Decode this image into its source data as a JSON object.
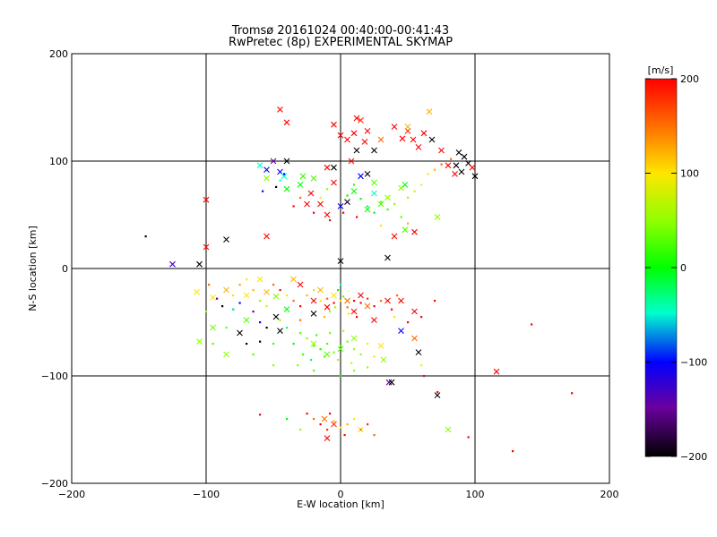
{
  "title": "Tromsø 20161024 00:40:00-00:41:43",
  "subtitle": "RwPretec (8p) EXPERIMENTAL SKYMAP",
  "chart_data": {
    "type": "scatter",
    "xlabel": "E-W location [km]",
    "ylabel": "N-S location [km]",
    "xlim": [
      -200,
      200
    ],
    "ylim": [
      -200,
      200
    ],
    "xticks": [
      -200,
      -100,
      0,
      100,
      200
    ],
    "yticks": [
      -200,
      -100,
      0,
      100,
      200
    ],
    "grid": true,
    "colorbar": {
      "label": "[m/s]",
      "range": [
        -200,
        200
      ],
      "ticks": [
        200,
        100,
        0,
        -100,
        -200
      ],
      "colormap": "rainbow: black(-200) → purple → blue(-100) → cyan → green(0) → yellow(100) → orange → red(200)"
    },
    "markers": {
      "cross": "x",
      "small": "."
    },
    "points": [
      [
        -45,
        148,
        200,
        "x"
      ],
      [
        -40,
        136,
        200,
        "x"
      ],
      [
        -5,
        134,
        200,
        "x"
      ],
      [
        12,
        140,
        200,
        "x"
      ],
      [
        15,
        138,
        180,
        "x"
      ],
      [
        20,
        128,
        200,
        "x"
      ],
      [
        10,
        126,
        200,
        "x"
      ],
      [
        0,
        124,
        200,
        "x"
      ],
      [
        5,
        120,
        200,
        "x"
      ],
      [
        18,
        118,
        200,
        "x"
      ],
      [
        50,
        128,
        180,
        "x"
      ],
      [
        46,
        121,
        200,
        "x"
      ],
      [
        54,
        120,
        200,
        "x"
      ],
      [
        58,
        113,
        200,
        "x"
      ],
      [
        66,
        146,
        120,
        "x"
      ],
      [
        50,
        132,
        120,
        "x"
      ],
      [
        68,
        120,
        -200,
        "x"
      ],
      [
        62,
        126,
        200,
        "x"
      ],
      [
        75,
        110,
        200,
        "x"
      ],
      [
        88,
        108,
        -200,
        "x"
      ],
      [
        92,
        104,
        -200,
        "x"
      ],
      [
        95,
        98,
        -200,
        "x"
      ],
      [
        98,
        94,
        200,
        "x"
      ],
      [
        100,
        86,
        -200,
        "x"
      ],
      [
        86,
        96,
        -200,
        "x"
      ],
      [
        90,
        90,
        -200,
        "x"
      ],
      [
        85,
        88,
        200,
        "x"
      ],
      [
        80,
        96,
        200,
        "x"
      ],
      [
        30,
        120,
        150,
        "x"
      ],
      [
        40,
        132,
        200,
        "x"
      ],
      [
        25,
        110,
        -200,
        "x"
      ],
      [
        12,
        110,
        -200,
        "x"
      ],
      [
        8,
        100,
        200,
        "x"
      ],
      [
        -50,
        100,
        -150,
        "x"
      ],
      [
        -55,
        92,
        -100,
        "x"
      ],
      [
        -45,
        90,
        -100,
        "x"
      ],
      [
        -42,
        86,
        -50,
        "x"
      ],
      [
        -40,
        100,
        -200,
        "x"
      ],
      [
        -60,
        96,
        -50,
        "x"
      ],
      [
        -55,
        84,
        50,
        "x"
      ],
      [
        -28,
        86,
        20,
        "x"
      ],
      [
        -20,
        84,
        30,
        "x"
      ],
      [
        -30,
        78,
        0,
        "x"
      ],
      [
        -40,
        74,
        0,
        "x"
      ],
      [
        -22,
        70,
        200,
        "x"
      ],
      [
        -15,
        60,
        200,
        "x"
      ],
      [
        -25,
        60,
        200,
        "x"
      ],
      [
        -10,
        50,
        200,
        "x"
      ],
      [
        -5,
        94,
        -200,
        "x"
      ],
      [
        -5,
        80,
        200,
        "x"
      ],
      [
        -10,
        94,
        200,
        "x"
      ],
      [
        0,
        58,
        -100,
        "x"
      ],
      [
        5,
        62,
        -200,
        "x"
      ],
      [
        15,
        86,
        -100,
        "x"
      ],
      [
        20,
        88,
        -200,
        "x"
      ],
      [
        25,
        70,
        -50,
        "x"
      ],
      [
        10,
        72,
        0,
        "x"
      ],
      [
        30,
        60,
        30,
        "x"
      ],
      [
        35,
        66,
        50,
        "x"
      ],
      [
        45,
        75,
        50,
        "x"
      ],
      [
        48,
        78,
        0,
        "x"
      ],
      [
        72,
        48,
        50,
        "x"
      ],
      [
        48,
        36,
        30,
        "x"
      ],
      [
        20,
        55,
        0,
        "x"
      ],
      [
        25,
        80,
        30,
        "x"
      ],
      [
        -100,
        64,
        200,
        "x"
      ],
      [
        -100,
        20,
        200,
        "x"
      ],
      [
        -85,
        27,
        -200,
        "x"
      ],
      [
        -55,
        30,
        200,
        "x"
      ],
      [
        -105,
        4,
        -200,
        "x"
      ],
      [
        -125,
        4,
        -130,
        "x"
      ],
      [
        -145,
        30,
        -200,
        "."
      ],
      [
        0,
        7,
        -200,
        "x"
      ],
      [
        35,
        10,
        -200,
        "x"
      ],
      [
        40,
        30,
        200,
        "x"
      ],
      [
        55,
        34,
        200,
        "x"
      ],
      [
        -107,
        -22,
        100,
        "x"
      ],
      [
        -95,
        -27,
        100,
        "x"
      ],
      [
        -85,
        -20,
        120,
        "x"
      ],
      [
        -70,
        -25,
        100,
        "x"
      ],
      [
        -60,
        -10,
        100,
        "x"
      ],
      [
        -55,
        -22,
        120,
        "x"
      ],
      [
        -48,
        -26,
        50,
        "x"
      ],
      [
        -48,
        -45,
        -200,
        "x"
      ],
      [
        -40,
        -38,
        0,
        "x"
      ],
      [
        -35,
        -10,
        120,
        "x"
      ],
      [
        -30,
        -15,
        200,
        "x"
      ],
      [
        -20,
        -30,
        200,
        "x"
      ],
      [
        -15,
        -20,
        120,
        "x"
      ],
      [
        -10,
        -36,
        200,
        "x"
      ],
      [
        -5,
        -25,
        100,
        "x"
      ],
      [
        5,
        -30,
        150,
        "x"
      ],
      [
        10,
        -40,
        200,
        "x"
      ],
      [
        15,
        -25,
        200,
        "x"
      ],
      [
        20,
        -35,
        150,
        "x"
      ],
      [
        25,
        -48,
        200,
        "x"
      ],
      [
        35,
        -30,
        200,
        "x"
      ],
      [
        45,
        -30,
        200,
        "x"
      ],
      [
        55,
        -40,
        200,
        "x"
      ],
      [
        45,
        -58,
        -100,
        "x"
      ],
      [
        55,
        -65,
        150,
        "x"
      ],
      [
        58,
        -78,
        -200,
        "x"
      ],
      [
        -70,
        -48,
        30,
        "x"
      ],
      [
        -75,
        -60,
        -200,
        "x"
      ],
      [
        -95,
        -55,
        40,
        "x"
      ],
      [
        -105,
        -68,
        50,
        "x"
      ],
      [
        -85,
        -80,
        50,
        "x"
      ],
      [
        -45,
        -58,
        -200,
        "x"
      ],
      [
        -20,
        -42,
        -200,
        "x"
      ],
      [
        30,
        -72,
        100,
        "x"
      ],
      [
        32,
        -85,
        50,
        "x"
      ],
      [
        36,
        -106,
        -150,
        "x"
      ],
      [
        38,
        -106,
        -200,
        "x"
      ],
      [
        72,
        -118,
        -200,
        "x"
      ],
      [
        80,
        -150,
        50,
        "x"
      ],
      [
        116,
        -96,
        200,
        "x"
      ],
      [
        -10,
        -80,
        30,
        "x"
      ],
      [
        0,
        -75,
        30,
        "x"
      ],
      [
        10,
        -65,
        50,
        "x"
      ],
      [
        -20,
        -70,
        50,
        "x"
      ],
      [
        -12,
        -140,
        150,
        "x"
      ],
      [
        -10,
        -158,
        200,
        "x"
      ],
      [
        15,
        -150,
        100,
        "x"
      ],
      [
        -5,
        -145,
        180,
        "x"
      ],
      [
        -70,
        -10,
        100,
        "."
      ],
      [
        -75,
        -15,
        130,
        "."
      ],
      [
        -65,
        -20,
        120,
        "."
      ],
      [
        -80,
        -25,
        100,
        "."
      ],
      [
        -60,
        -30,
        60,
        "."
      ],
      [
        -55,
        -35,
        80,
        "."
      ],
      [
        -50,
        -15,
        150,
        "."
      ],
      [
        -45,
        -20,
        200,
        "."
      ],
      [
        -40,
        -25,
        100,
        "."
      ],
      [
        -35,
        -30,
        150,
        "."
      ],
      [
        -30,
        -35,
        200,
        "."
      ],
      [
        -25,
        -25,
        120,
        "."
      ],
      [
        -20,
        -20,
        80,
        "."
      ],
      [
        -15,
        -30,
        100,
        "."
      ],
      [
        -10,
        -28,
        150,
        "."
      ],
      [
        -5,
        -32,
        200,
        "."
      ],
      [
        0,
        -30,
        100,
        "."
      ],
      [
        5,
        -36,
        150,
        "."
      ],
      [
        10,
        -30,
        200,
        "."
      ],
      [
        15,
        -32,
        200,
        "."
      ],
      [
        20,
        -28,
        180,
        "."
      ],
      [
        25,
        -35,
        200,
        "."
      ],
      [
        30,
        -30,
        150,
        "."
      ],
      [
        -2,
        -20,
        0,
        "."
      ],
      [
        2,
        -26,
        30,
        "."
      ],
      [
        -8,
        -40,
        60,
        "."
      ],
      [
        6,
        -42,
        100,
        "."
      ],
      [
        12,
        -45,
        200,
        "."
      ],
      [
        -12,
        -45,
        120,
        "."
      ],
      [
        0,
        -15,
        -50,
        "."
      ],
      [
        -4,
        -36,
        50,
        "."
      ],
      [
        -30,
        -60,
        30,
        "."
      ],
      [
        -25,
        -65,
        50,
        "."
      ],
      [
        -20,
        -72,
        30,
        "."
      ],
      [
        -15,
        -75,
        10,
        "."
      ],
      [
        -10,
        -70,
        30,
        "."
      ],
      [
        -5,
        -78,
        40,
        "."
      ],
      [
        0,
        -72,
        20,
        "."
      ],
      [
        5,
        -68,
        40,
        "."
      ],
      [
        10,
        -75,
        60,
        "."
      ],
      [
        -35,
        -70,
        0,
        "."
      ],
      [
        -28,
        -80,
        20,
        "."
      ],
      [
        -22,
        -85,
        -20,
        "."
      ],
      [
        -12,
        -82,
        30,
        "."
      ],
      [
        -2,
        -85,
        60,
        "."
      ],
      [
        8,
        -88,
        80,
        "."
      ],
      [
        15,
        -80,
        50,
        "."
      ],
      [
        20,
        -70,
        100,
        "."
      ],
      [
        -40,
        -55,
        -30,
        "."
      ],
      [
        -45,
        -48,
        60,
        "."
      ],
      [
        -18,
        -62,
        20,
        "."
      ],
      [
        -8,
        -60,
        40,
        "."
      ],
      [
        2,
        -58,
        70,
        "."
      ],
      [
        25,
        -82,
        100,
        "."
      ],
      [
        -32,
        -90,
        50,
        "."
      ],
      [
        -50,
        -70,
        20,
        "."
      ],
      [
        -60,
        -50,
        -100,
        "."
      ],
      [
        -65,
        -40,
        -150,
        "."
      ],
      [
        -55,
        -55,
        -200,
        "."
      ],
      [
        -88,
        -35,
        -200,
        "."
      ],
      [
        -92,
        -28,
        -150,
        "."
      ],
      [
        -80,
        -38,
        -200,
        "."
      ],
      [
        -75,
        -32,
        -100,
        "."
      ],
      [
        -100,
        -40,
        50,
        "."
      ],
      [
        -98,
        -15,
        150,
        "."
      ],
      [
        -60,
        -68,
        -200,
        "."
      ],
      [
        -30,
        -48,
        150,
        "."
      ],
      [
        50,
        -50,
        200,
        "."
      ],
      [
        60,
        -45,
        200,
        "."
      ],
      [
        70,
        -30,
        200,
        "."
      ],
      [
        42,
        -25,
        150,
        "."
      ],
      [
        38,
        -38,
        200,
        "."
      ],
      [
        -20,
        -140,
        150,
        "."
      ],
      [
        -15,
        -145,
        200,
        "."
      ],
      [
        -10,
        -150,
        180,
        "."
      ],
      [
        -5,
        -142,
        120,
        "."
      ],
      [
        0,
        -148,
        100,
        "."
      ],
      [
        5,
        -145,
        120,
        "."
      ],
      [
        10,
        -140,
        100,
        "."
      ],
      [
        15,
        -150,
        150,
        "."
      ],
      [
        20,
        -145,
        180,
        "."
      ],
      [
        25,
        -155,
        150,
        "."
      ],
      [
        -25,
        -135,
        200,
        "."
      ],
      [
        -30,
        -150,
        50,
        "."
      ],
      [
        -8,
        -135,
        200,
        "."
      ],
      [
        3,
        -155,
        200,
        "."
      ],
      [
        -40,
        -140,
        0,
        "."
      ],
      [
        -60,
        -136,
        200,
        "."
      ],
      [
        -80,
        -38,
        -50,
        "."
      ],
      [
        -95,
        -70,
        30,
        "."
      ],
      [
        -85,
        -55,
        40,
        "."
      ],
      [
        -70,
        -70,
        -200,
        "."
      ],
      [
        -65,
        -80,
        30,
        "."
      ],
      [
        -50,
        -90,
        50,
        "."
      ],
      [
        -20,
        -95,
        30,
        "."
      ],
      [
        0,
        -100,
        0,
        "."
      ],
      [
        10,
        -95,
        50,
        "."
      ],
      [
        20,
        -92,
        60,
        "."
      ],
      [
        40,
        -45,
        100,
        "."
      ],
      [
        60,
        -90,
        100,
        "."
      ],
      [
        62,
        -100,
        200,
        "."
      ],
      [
        72,
        -115,
        200,
        "."
      ],
      [
        95,
        -157,
        200,
        "."
      ],
      [
        128,
        -170,
        200,
        "."
      ],
      [
        142,
        -52,
        200,
        "."
      ],
      [
        172,
        -116,
        200,
        "."
      ],
      [
        -42,
        88,
        -100,
        "."
      ],
      [
        -48,
        76,
        -200,
        "."
      ],
      [
        -58,
        72,
        -100,
        "."
      ],
      [
        -45,
        82,
        -50,
        "."
      ],
      [
        15,
        65,
        0,
        "."
      ],
      [
        20,
        58,
        -30,
        "."
      ],
      [
        25,
        52,
        0,
        "."
      ],
      [
        30,
        62,
        30,
        "."
      ],
      [
        35,
        55,
        20,
        "."
      ],
      [
        40,
        60,
        50,
        "."
      ],
      [
        45,
        48,
        30,
        "."
      ],
      [
        50,
        66,
        60,
        "."
      ],
      [
        55,
        72,
        80,
        "."
      ],
      [
        60,
        78,
        100,
        "."
      ],
      [
        65,
        88,
        100,
        "."
      ],
      [
        70,
        92,
        120,
        "."
      ],
      [
        75,
        97,
        150,
        "."
      ],
      [
        82,
        102,
        150,
        "."
      ],
      [
        10,
        78,
        20,
        "."
      ],
      [
        5,
        68,
        0,
        "."
      ],
      [
        -10,
        74,
        50,
        "."
      ],
      [
        -15,
        66,
        100,
        "."
      ],
      [
        -30,
        66,
        150,
        "."
      ],
      [
        -35,
        58,
        200,
        "."
      ],
      [
        -20,
        52,
        200,
        "."
      ],
      [
        -8,
        45,
        200,
        "."
      ],
      [
        2,
        52,
        200,
        "."
      ],
      [
        12,
        48,
        200,
        "."
      ],
      [
        30,
        40,
        100,
        "."
      ],
      [
        50,
        42,
        120,
        "."
      ]
    ]
  }
}
